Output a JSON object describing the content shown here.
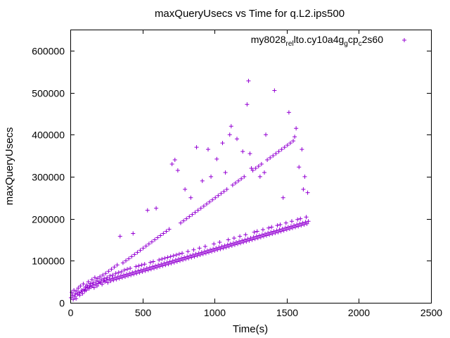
{
  "chart_data": {
    "type": "scatter",
    "title": "maxQueryUsecs vs Time for q.L2.ips500",
    "xlabel": "Time(s)",
    "ylabel": "maxQueryUsecs",
    "xlim": [
      0,
      2500
    ],
    "ylim": [
      0,
      650000
    ],
    "xticks": [
      0,
      500,
      1000,
      1500,
      2000,
      2500
    ],
    "yticks": [
      0,
      100000,
      200000,
      300000,
      400000,
      500000,
      600000
    ],
    "xtick_labels": [
      "0",
      "500",
      "1000",
      "1500",
      "2000",
      "2500"
    ],
    "ytick_labels": [
      "0",
      "100000",
      "200000",
      "300000",
      "400000",
      "500000",
      "600000"
    ],
    "legend": {
      "position": "top-right",
      "marker": "+"
    },
    "grid": false,
    "series": [
      {
        "name": "my8028_rel_lto.cy10a4g_gcp_c2s60",
        "name_parts": {
          "p1": "my8028",
          "s1": "rel",
          "p2": "lto.cy10a4g",
          "s2": "g",
          "p3": "cp",
          "s3": "c",
          "p4": "2s60"
        },
        "color": "#9400d3",
        "marker": "+",
        "x_start": 5,
        "x_step": 5,
        "values_description": "dense scatter of per-interval maxima, sampled approximately",
        "values": [
          12000,
          25000,
          18000,
          8000,
          30000,
          15000,
          22000,
          10000,
          28000,
          20000,
          35000,
          24000,
          18000,
          40000,
          26000,
          30000,
          22000,
          45000,
          32000,
          28000,
          38000,
          30000,
          42000,
          36000,
          50000,
          34000,
          40000,
          46000,
          38000,
          55000,
          42000,
          48000,
          36000,
          60000,
          44000,
          52000,
          40000,
          58000,
          46000,
          50000,
          62000,
          48000,
          55000,
          44000,
          66000,
          52000,
          58000,
          50000,
          70000,
          54000,
          60000,
          48000,
          75000,
          56000,
          64000,
          52000,
          80000,
          58000,
          66000,
          54000,
          85000,
          60000,
          70000,
          56000,
          90000,
          62000,
          72000,
          58000,
          158000,
          64000,
          74000,
          60000,
          95000,
          66000,
          78000,
          62000,
          100000,
          68000,
          80000,
          64000,
          105000,
          70000,
          82000,
          66000,
          110000,
          72000,
          165000,
          68000,
          115000,
          74000,
          86000,
          70000,
          120000,
          76000,
          88000,
          72000,
          125000,
          78000,
          90000,
          74000,
          130000,
          80000,
          92000,
          76000,
          135000,
          82000,
          220000,
          78000,
          140000,
          84000,
          96000,
          80000,
          145000,
          86000,
          98000,
          82000,
          150000,
          88000,
          225000,
          84000,
          155000,
          90000,
          102000,
          86000,
          160000,
          92000,
          104000,
          88000,
          165000,
          94000,
          106000,
          90000,
          170000,
          96000,
          108000,
          92000,
          175000,
          98000,
          110000,
          94000,
          330000,
          100000,
          112000,
          96000,
          340000,
          102000,
          114000,
          98000,
          315000,
          104000,
          116000,
          100000,
          190000,
          106000,
          118000,
          102000,
          195000,
          108000,
          270000,
          104000,
          200000,
          110000,
          122000,
          106000,
          205000,
          112000,
          250000,
          108000,
          210000,
          114000,
          126000,
          110000,
          215000,
          116000,
          370000,
          112000,
          220000,
          118000,
          130000,
          114000,
          225000,
          120000,
          290000,
          116000,
          230000,
          122000,
          134000,
          118000,
          235000,
          124000,
          365000,
          120000,
          240000,
          126000,
          300000,
          122000,
          245000,
          128000,
          140000,
          124000,
          250000,
          130000,
          342000,
          126000,
          255000,
          132000,
          144000,
          128000,
          260000,
          134000,
          380000,
          130000,
          265000,
          136000,
          310000,
          132000,
          270000,
          138000,
          150000,
          134000,
          400000,
          140000,
          420000,
          136000,
          280000,
          142000,
          154000,
          138000,
          285000,
          144000,
          390000,
          140000,
          290000,
          146000,
          158000,
          142000,
          295000,
          148000,
          360000,
          144000,
          300000,
          150000,
          162000,
          146000,
          472000,
          152000,
          528000,
          148000,
          355000,
          154000,
          320000,
          150000,
          315000,
          156000,
          168000,
          152000,
          320000,
          158000,
          170000,
          154000,
          325000,
          160000,
          300000,
          156000,
          330000,
          162000,
          174000,
          158000,
          310000,
          164000,
          400000,
          160000,
          340000,
          166000,
          178000,
          162000,
          345000,
          168000,
          180000,
          164000,
          350000,
          170000,
          505000,
          166000,
          355000,
          172000,
          184000,
          168000,
          360000,
          174000,
          186000,
          170000,
          365000,
          176000,
          250000,
          172000,
          370000,
          178000,
          190000,
          174000,
          375000,
          180000,
          453000,
          176000,
          380000,
          182000,
          194000,
          178000,
          385000,
          184000,
          395000,
          180000,
          415000,
          186000,
          198000,
          182000,
          323000,
          188000,
          200000,
          184000,
          365000,
          190000,
          270000,
          186000,
          300000,
          192000,
          204000,
          188000,
          262000,
          194000
        ]
      }
    ]
  }
}
